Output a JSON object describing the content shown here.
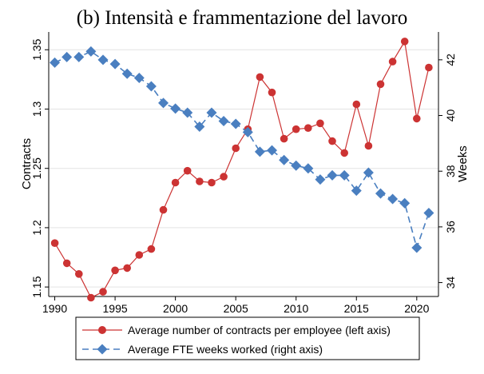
{
  "chart_data": {
    "type": "line",
    "title": "(b) Intensità e frammentazione del lavoro",
    "xlabel": "",
    "ylabel_left": "Contracts",
    "ylabel_right": "Weeks",
    "xlim": [
      1989.5,
      2021.8
    ],
    "xticks": [
      "1990",
      "1995",
      "2000",
      "2005",
      "2010",
      "2015",
      "2020"
    ],
    "ylim_left": [
      1.142,
      1.365
    ],
    "yticks_left": [
      "1.15",
      "1.2",
      "1.25",
      "1.3",
      "1.35"
    ],
    "ylim_right": [
      33.5,
      43.0
    ],
    "yticks_right": [
      "34",
      "36",
      "38",
      "40",
      "42"
    ],
    "grid": true,
    "legend_position": "bottom",
    "x": [
      1990,
      1991,
      1992,
      1993,
      1994,
      1995,
      1996,
      1997,
      1998,
      1999,
      2000,
      2001,
      2002,
      2003,
      2004,
      2005,
      2006,
      2007,
      2008,
      2009,
      2010,
      2011,
      2012,
      2013,
      2014,
      2015,
      2016,
      2017,
      2018,
      2019,
      2020,
      2021
    ],
    "series": [
      {
        "name": "Average number of contracts per employee (left axis)",
        "axis": "left",
        "color": "#cc3333",
        "marker": "circle",
        "dash": "solid",
        "values": [
          1.187,
          1.17,
          1.161,
          1.141,
          1.146,
          1.164,
          1.166,
          1.177,
          1.182,
          1.215,
          1.238,
          1.248,
          1.239,
          1.238,
          1.243,
          1.267,
          1.283,
          1.327,
          1.314,
          1.275,
          1.283,
          1.284,
          1.288,
          1.273,
          1.263,
          1.304,
          1.269,
          1.321,
          1.34,
          1.357,
          1.292,
          1.335
        ]
      },
      {
        "name": "Average FTE weeks worked (right axis)",
        "axis": "right",
        "color": "#4a7fc0",
        "marker": "diamond",
        "dash": "dashed",
        "values": [
          41.9,
          42.1,
          42.1,
          42.3,
          42.0,
          41.85,
          41.5,
          41.35,
          41.05,
          40.45,
          40.25,
          40.1,
          39.6,
          40.1,
          39.8,
          39.7,
          39.4,
          38.7,
          38.75,
          38.4,
          38.2,
          38.1,
          37.7,
          37.85,
          37.85,
          37.3,
          37.95,
          37.2,
          37.0,
          36.85,
          35.25,
          36.5
        ]
      }
    ]
  }
}
